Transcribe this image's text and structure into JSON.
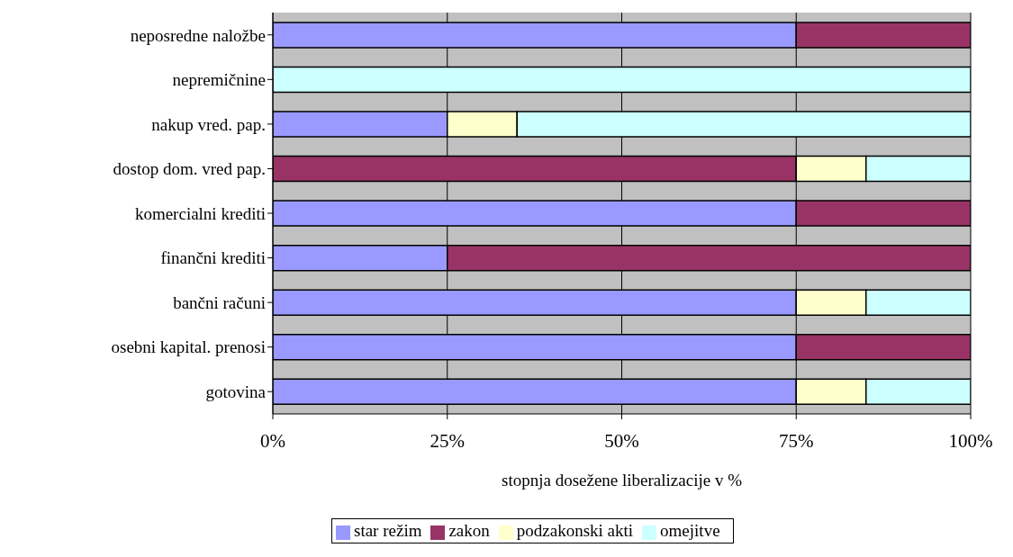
{
  "chart_data": {
    "type": "bar",
    "orientation": "horizontal",
    "stacked": true,
    "xlabel": "stopnja dosežene liberalizacije v %",
    "categories": [
      "neposredne naložbe",
      "nepremičnine",
      "nakup vred. pap.",
      "dostop dom. vred pap.",
      "komercialni krediti",
      "finančni krediti",
      "bančni računi",
      "osebni kapital. prenosi",
      "gotovina"
    ],
    "series": [
      {
        "name": "star režim",
        "color": "#9999ff",
        "values": [
          75,
          null,
          25,
          null,
          75,
          25,
          75,
          75,
          75
        ]
      },
      {
        "name": "zakon",
        "color": "#993366",
        "values": [
          25,
          null,
          null,
          75,
          25,
          75,
          null,
          25,
          null
        ]
      },
      {
        "name": "podzakonski akti",
        "color": "#ffffcc",
        "values": [
          null,
          null,
          10,
          10,
          null,
          null,
          10,
          null,
          10
        ]
      },
      {
        "name": "omejitve",
        "color": "#ccffff",
        "values": [
          null,
          100,
          65,
          15,
          null,
          null,
          15,
          null,
          15
        ]
      }
    ],
    "xlim": [
      0,
      100
    ],
    "xticks": [
      {
        "value": 0,
        "label": "0%"
      },
      {
        "value": 25,
        "label": "25%"
      },
      {
        "value": 50,
        "label": "50%"
      },
      {
        "value": 75,
        "label": "75%"
      },
      {
        "value": 100,
        "label": "100%"
      }
    ],
    "grid": "x",
    "legend": "bottom"
  }
}
